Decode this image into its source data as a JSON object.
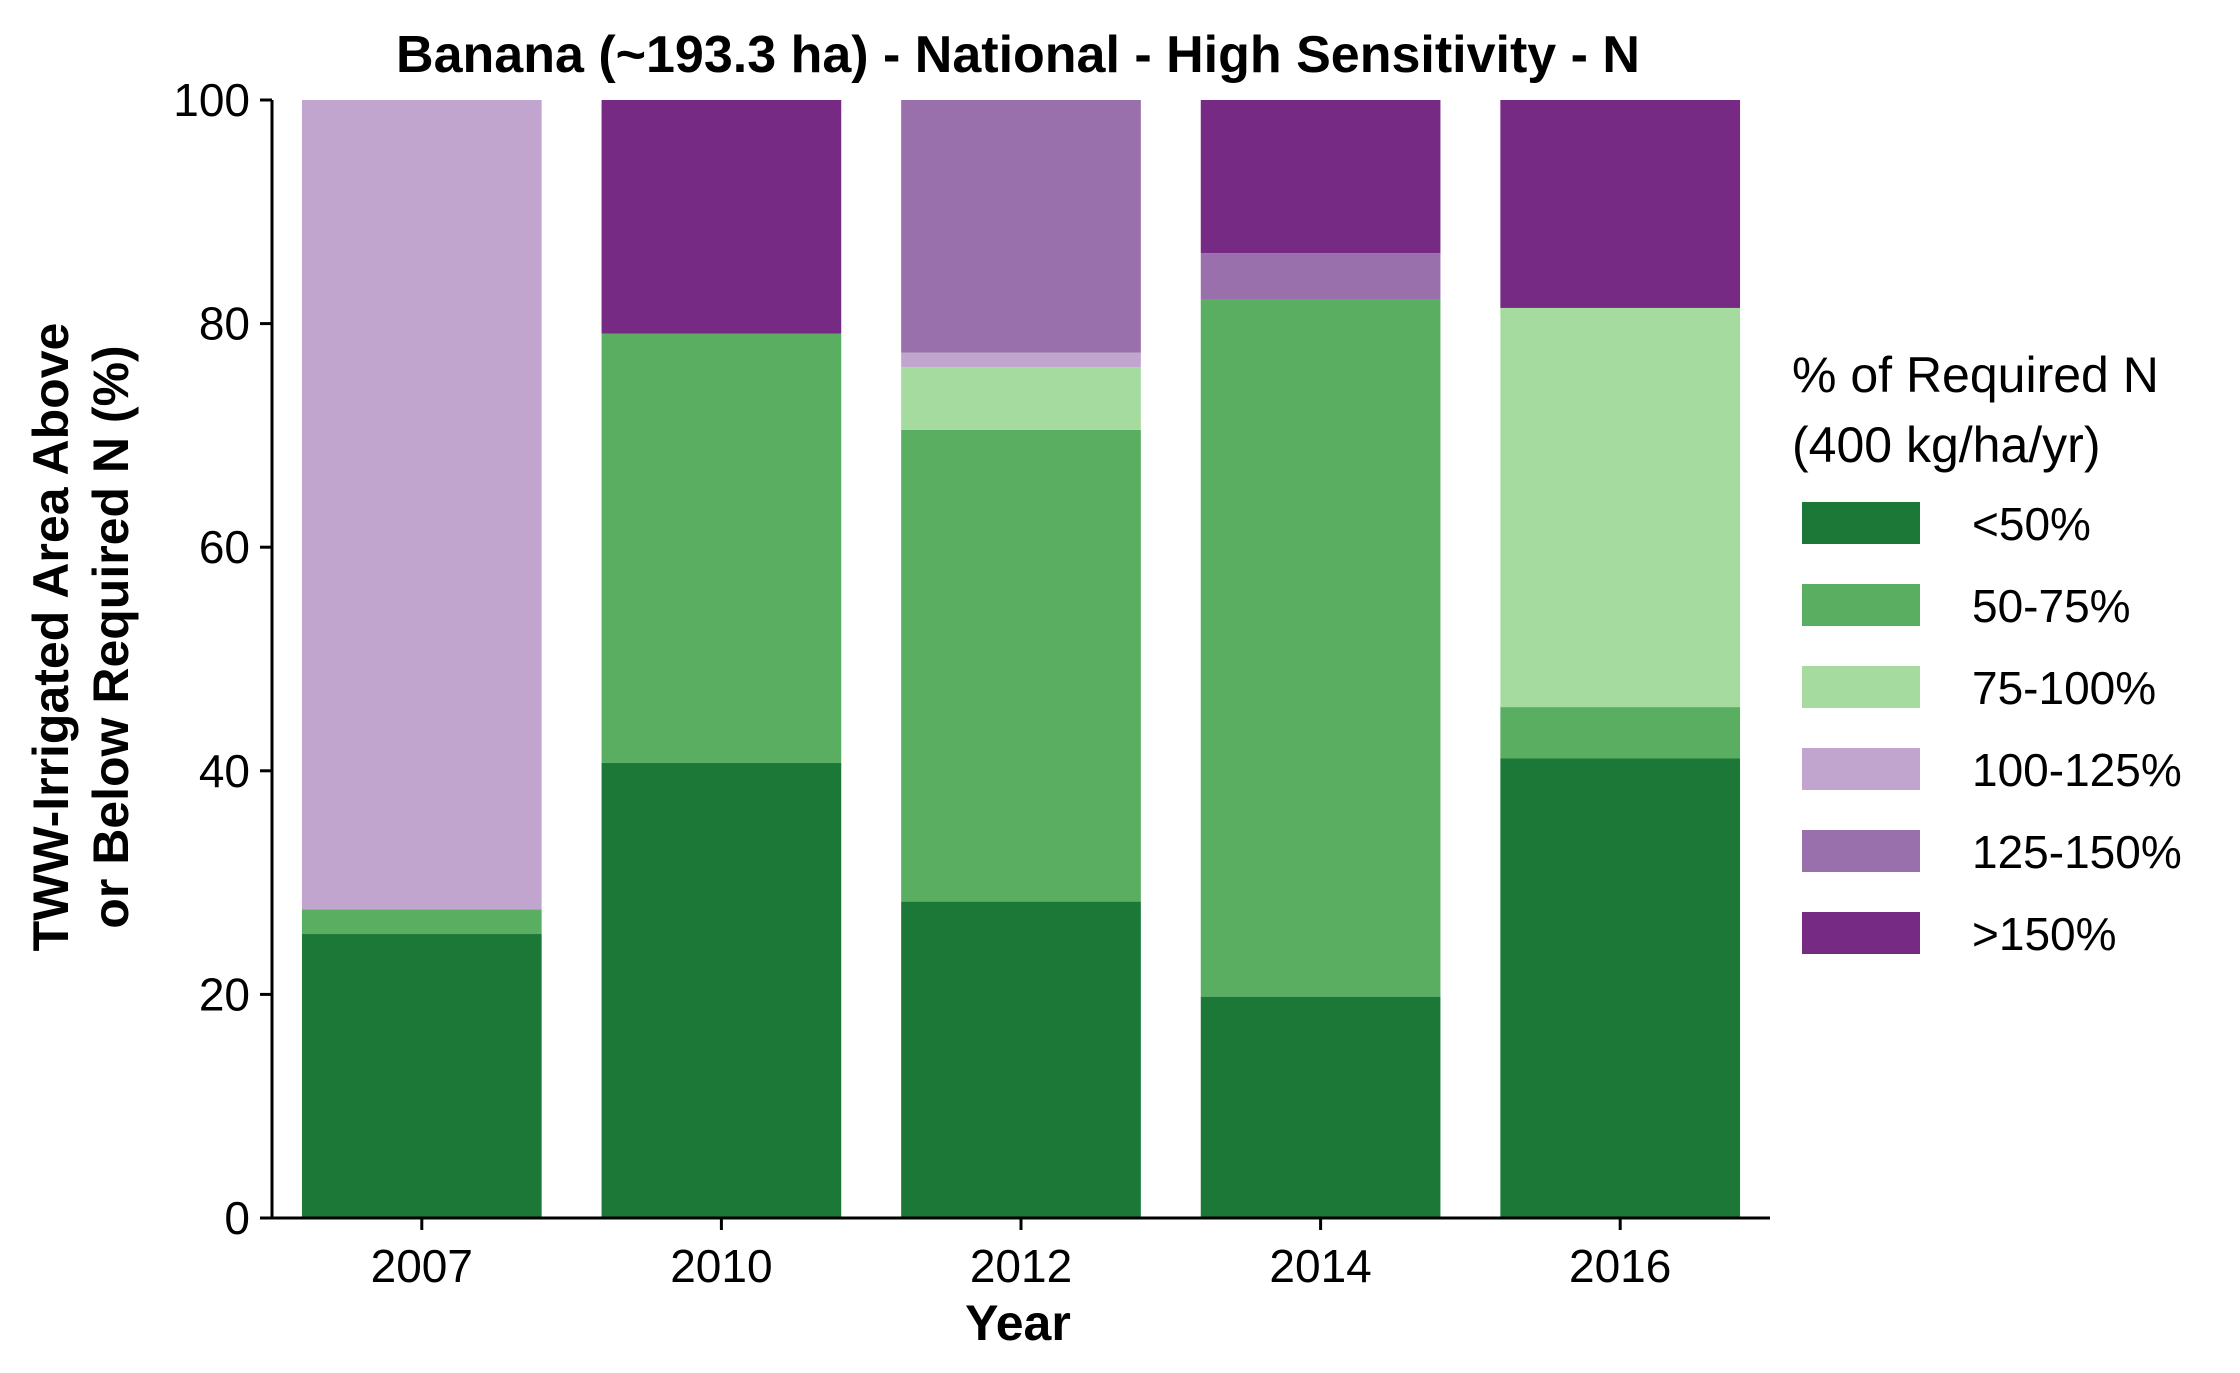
{
  "chart_data": {
    "type": "bar",
    "stacked": true,
    "title": "Banana (~193.3 ha) - National - High Sensitivity - N",
    "xlabel": "Year",
    "ylabel_lines": [
      "TWW-Irrigated Area Above",
      "or Below Required N (%)"
    ],
    "ylim": [
      0,
      100
    ],
    "yticks": [
      0,
      20,
      40,
      60,
      80,
      100
    ],
    "grid": false,
    "categories": [
      "2007",
      "2010",
      "2012",
      "2014",
      "2016"
    ],
    "legend": {
      "placement": "right",
      "title_lines": [
        "% of Required N",
        "(400 kg/ha/yr)"
      ]
    },
    "series": [
      {
        "name": "<50%",
        "color": "#1b7837",
        "values": [
          25.4,
          40.7,
          28.3,
          19.8,
          41.1
        ]
      },
      {
        "name": "50-75%",
        "color": "#5aae61",
        "values": [
          2.2,
          38.4,
          42.2,
          62.4,
          4.6
        ]
      },
      {
        "name": "75-100%",
        "color": "#a6dba0",
        "values": [
          0,
          0,
          5.6,
          0,
          35.7
        ]
      },
      {
        "name": "100-125%",
        "color": "#c2a5cf",
        "values": [
          72.4,
          0,
          1.3,
          0,
          0
        ]
      },
      {
        "name": "125-150%",
        "color": "#9970ab",
        "values": [
          0,
          0,
          22.6,
          4.1,
          0
        ]
      },
      {
        "name": ">150%",
        "color": "#762a83",
        "values": [
          0,
          20.9,
          0,
          13.7,
          18.6
        ]
      }
    ]
  }
}
